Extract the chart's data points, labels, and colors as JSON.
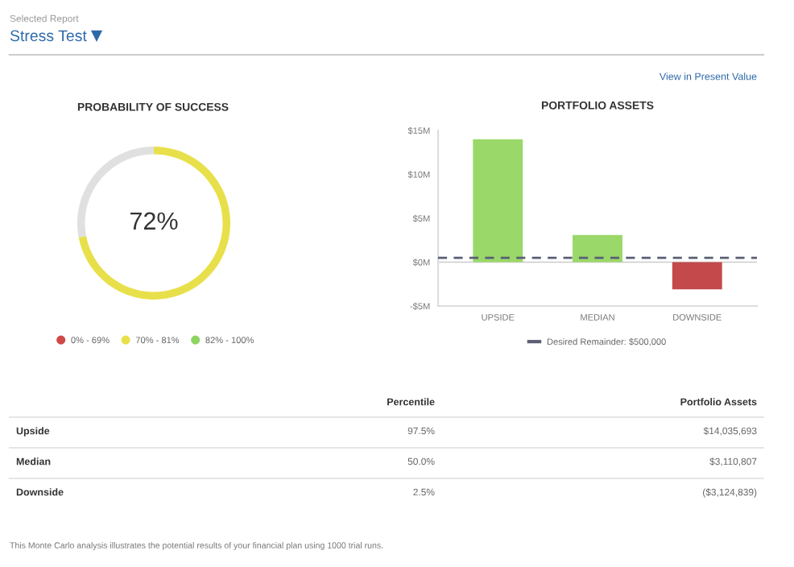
{
  "chart_data": [
    {
      "type": "donut",
      "title": "PROBABILITY OF SUCCESS",
      "categories": [
        null,
        null
      ],
      "values": [
        72,
        28
      ],
      "colors": [
        "#e8e04a",
        "#e0e0e0"
      ],
      "value_labels": [
        "72%",
        null
      ],
      "annotations": [
        "0% - 69%",
        "70% - 81%",
        "82% - 100%"
      ]
    },
    {
      "type": "bar",
      "title": "PORTFOLIO ASSETS",
      "categories": [
        "UPSIDE",
        "MEDIAN",
        "DOWNSIDE"
      ],
      "values": [
        14000000,
        3100000,
        -3100000
      ],
      "colors": [
        "#9bd86a",
        "#9bd86a",
        "#c4494b"
      ],
      "ylim": [
        -5000000,
        15000000
      ],
      "yticks": [
        {
          "value": -5000000,
          "label": "-$5M"
        },
        {
          "value": 0,
          "label": "$0M"
        },
        {
          "value": 5000000,
          "label": "$5M"
        },
        {
          "value": 10000000,
          "label": "$10M"
        },
        {
          "value": 15000000,
          "label": "$15M"
        }
      ],
      "ref_lines": [
        {
          "axis": "y",
          "value": 500000,
          "label": "Desired Remainder: $500,000",
          "color": "#5a5f73",
          "line_style": "dashed"
        }
      ],
      "legend": "bottom"
    },
    {
      "type": "other",
      "annotations": [
        "Selected Report",
        "Stress Test",
        "View in Present Value",
        "Percentile",
        "Portfolio Assets",
        "Upside",
        "97.5%",
        "$14,035,693",
        "Median",
        "50.0%",
        "$3,110,807",
        "Downside",
        "2.5%",
        "($3,124,839)",
        "This Monte Carlo analysis illustrates the potential results of your financial plan using 1000 trial runs."
      ]
    }
  ]
}
